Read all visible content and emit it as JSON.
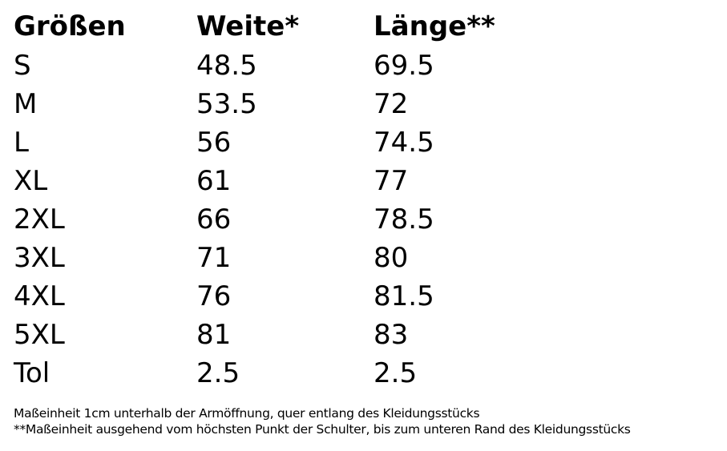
{
  "table": {
    "headers": [
      "Größen",
      "Weite*",
      "Länge**"
    ],
    "rows": [
      [
        "S",
        "48.5",
        "69.5"
      ],
      [
        "M",
        "53.5",
        "72"
      ],
      [
        "L",
        "56",
        "74.5"
      ],
      [
        "XL",
        "61",
        "77"
      ],
      [
        "2XL",
        "66",
        "78.5"
      ],
      [
        "3XL",
        "71",
        "80"
      ],
      [
        "4XL",
        "76",
        "81.5"
      ],
      [
        "5XL",
        "81",
        "83"
      ],
      [
        "Tol",
        "2.5",
        "2.5"
      ]
    ]
  },
  "footnotes": [
    "Maßeinheit 1cm unterhalb der Armöffnung, quer entlang des Kleidungsstücks",
    "**Maßeinheit ausgehend vom höchsten Punkt der Schulter, bis zum unteren Rand des Kleidungsstücks"
  ]
}
